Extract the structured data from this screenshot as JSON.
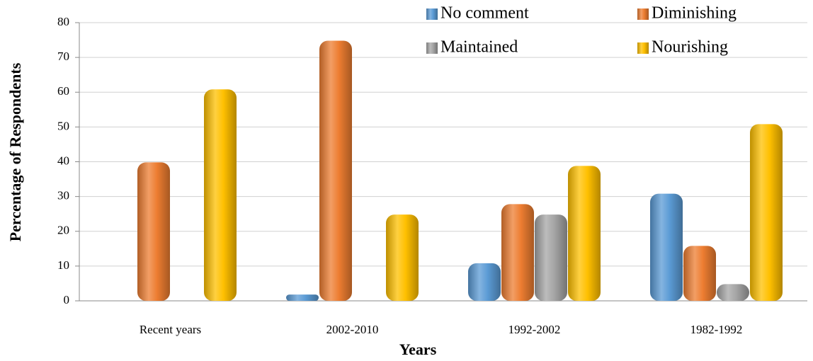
{
  "chart_data": {
    "type": "bar",
    "x_label": "Years",
    "y_label": "Percentage of Respondents",
    "categories": [
      "Recent years",
      "2002-2010",
      "1992-2002",
      "1982-1992"
    ],
    "series": [
      {
        "name": "No comment",
        "color": "#5b9bd5",
        "values": [
          0,
          1,
          10,
          30
        ]
      },
      {
        "name": "Diminishing",
        "color": "#ed7d31",
        "values": [
          39,
          74,
          27,
          15
        ]
      },
      {
        "name": "Maintained",
        "color": "#a5a5a5",
        "values": [
          0,
          0,
          24,
          4
        ]
      },
      {
        "name": "Nourishing",
        "color": "#ffc000",
        "values": [
          60,
          24,
          38,
          50
        ]
      }
    ],
    "ylim": [
      0,
      80
    ],
    "yticks": [
      0,
      10,
      20,
      30,
      40,
      50,
      60,
      70,
      80
    ],
    "grid": true
  }
}
